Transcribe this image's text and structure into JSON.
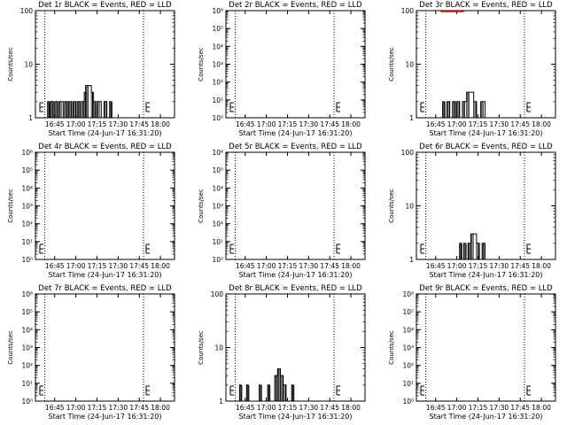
{
  "x_ticks": [
    "16:45",
    "17:00",
    "17:15",
    "17:30",
    "17:45",
    "18:00"
  ],
  "xlabel": "Start Time (24-Jun-17 16:31:20)",
  "ylabel": "Counts/sec",
  "colors": {
    "events": "#000000",
    "lld": "#ff0000",
    "axes": "#000000"
  },
  "chart_data": [
    {
      "type": "line",
      "title": "Det 1r BLACK = Events, RED = LLD",
      "x_range": [
        "16:31:20",
        "18:10"
      ],
      "y_scale": "log",
      "y_range": [
        1,
        100
      ],
      "y_ticks": [
        "1",
        "10",
        "100"
      ],
      "dotted_times": [
        "16:38",
        "17:48"
      ],
      "events": [
        [
          "16:40",
          2
        ],
        [
          "16:41",
          1
        ],
        [
          "16:42",
          2
        ],
        [
          "16:44",
          1
        ],
        [
          "16:45",
          2
        ],
        [
          "16:47",
          1
        ],
        [
          "16:48",
          2
        ],
        [
          "16:51",
          1
        ],
        [
          "16:52",
          2
        ],
        [
          "16:54",
          1
        ],
        [
          "16:55",
          2
        ],
        [
          "16:57",
          1
        ],
        [
          "16:58",
          2
        ],
        [
          "17:00",
          1
        ],
        [
          "17:01",
          2
        ],
        [
          "17:03",
          1
        ],
        [
          "17:04",
          2
        ],
        [
          "17:06",
          3
        ],
        [
          "17:07",
          4
        ],
        [
          "17:11",
          3
        ],
        [
          "17:12",
          2
        ],
        [
          "17:14",
          1
        ],
        [
          "17:15",
          2
        ],
        [
          "17:18",
          1
        ],
        [
          "17:20",
          2
        ],
        [
          "17:22",
          1
        ],
        [
          "17:24",
          2
        ],
        [
          "17:25",
          1
        ]
      ],
      "lld": []
    },
    {
      "type": "line",
      "title": "Det 2r BLACK = Events, RED = LLD",
      "x_range": [
        "16:31:20",
        "18:10"
      ],
      "y_scale": "log",
      "y_range": [
        1,
        1000000
      ],
      "y_ticks": [
        "10⁰",
        "10¹",
        "10²",
        "10³",
        "10⁴",
        "10⁵",
        "10⁶"
      ],
      "dotted_times": [
        "16:38",
        "17:48"
      ],
      "events": [],
      "lld": []
    },
    {
      "type": "line",
      "title": "Det 3r BLACK = Events, RED = LLD",
      "x_range": [
        "16:31:20",
        "18:10"
      ],
      "y_scale": "log",
      "y_range": [
        1,
        100
      ],
      "y_ticks": [
        "1",
        "10",
        "100"
      ],
      "dotted_times": [
        "16:38",
        "17:48"
      ],
      "events": [
        [
          "16:50",
          2
        ],
        [
          "16:51",
          1
        ],
        [
          "16:53",
          2
        ],
        [
          "16:55",
          1
        ],
        [
          "16:57",
          2
        ],
        [
          "16:59",
          1
        ],
        [
          "17:00",
          2
        ],
        [
          "17:02",
          1
        ],
        [
          "17:04",
          2
        ],
        [
          "17:07",
          3
        ],
        [
          "17:12",
          2
        ],
        [
          "17:14",
          1
        ],
        [
          "17:17",
          2
        ],
        [
          "17:20",
          1
        ]
      ],
      "lld": [
        [
          "16:51",
          100
        ],
        [
          "16:59",
          100
        ]
      ]
    },
    {
      "type": "line",
      "title": "Det 4r BLACK = Events, RED = LLD",
      "x_range": [
        "16:31:20",
        "18:10"
      ],
      "y_scale": "log",
      "y_range": [
        1,
        1000000
      ],
      "y_ticks": [
        "10⁰",
        "10¹",
        "10²",
        "10³",
        "10⁴",
        "10⁵",
        "10⁶"
      ],
      "dotted_times": [
        "16:38",
        "17:48"
      ],
      "events": [],
      "lld": []
    },
    {
      "type": "line",
      "title": "Det 5r BLACK = Events, RED = LLD",
      "x_range": [
        "16:31:20",
        "18:10"
      ],
      "y_scale": "log",
      "y_range": [
        1,
        1000000
      ],
      "y_ticks": [
        "10⁰",
        "10¹",
        "10²",
        "10³",
        "10⁴",
        "10⁵",
        "10⁶"
      ],
      "dotted_times": [
        "16:38",
        "17:48"
      ],
      "events": [],
      "lld": []
    },
    {
      "type": "line",
      "title": "Det 6r BLACK = Events, RED = LLD",
      "x_range": [
        "16:31:20",
        "18:10"
      ],
      "y_scale": "log",
      "y_range": [
        1,
        100
      ],
      "y_ticks": [
        "1",
        "10",
        "100"
      ],
      "dotted_times": [
        "16:38",
        "17:48"
      ],
      "events": [
        [
          "17:02",
          2
        ],
        [
          "17:03",
          1
        ],
        [
          "17:05",
          2
        ],
        [
          "17:06",
          1
        ],
        [
          "17:08",
          2
        ],
        [
          "17:10",
          3
        ],
        [
          "17:14",
          2
        ],
        [
          "17:16",
          1
        ],
        [
          "17:18",
          2
        ],
        [
          "17:20",
          1
        ]
      ],
      "lld": []
    },
    {
      "type": "line",
      "title": "Det 7r BLACK = Events, RED = LLD",
      "x_range": [
        "16:31:20",
        "18:10"
      ],
      "y_scale": "log",
      "y_range": [
        1,
        1000000
      ],
      "y_ticks": [
        "10⁰",
        "10¹",
        "10²",
        "10³",
        "10⁴",
        "10⁵",
        "10⁶"
      ],
      "dotted_times": [
        "16:38",
        "17:48"
      ],
      "events": [],
      "lld": []
    },
    {
      "type": "line",
      "title": "Det 8r BLACK = Events, RED = LLD",
      "x_range": [
        "16:31:20",
        "18:10"
      ],
      "y_scale": "log",
      "y_range": [
        1,
        100
      ],
      "y_ticks": [
        "1",
        "10",
        "100"
      ],
      "dotted_times": [
        "16:38",
        "17:48"
      ],
      "events": [
        [
          "16:41",
          2
        ],
        [
          "16:42",
          1
        ],
        [
          "16:46",
          2
        ],
        [
          "16:47",
          1
        ],
        [
          "16:55",
          2
        ],
        [
          "16:56",
          1
        ],
        [
          "17:01",
          2
        ],
        [
          "17:02",
          1
        ],
        [
          "17:06",
          3
        ],
        [
          "17:08",
          4
        ],
        [
          "17:10",
          3
        ],
        [
          "17:12",
          2
        ],
        [
          "17:14",
          1
        ],
        [
          "17:18",
          2
        ],
        [
          "17:19",
          1
        ]
      ],
      "lld": []
    },
    {
      "type": "line",
      "title": "Det 9r BLACK = Events, RED = LLD",
      "x_range": [
        "16:31:20",
        "18:10"
      ],
      "y_scale": "log",
      "y_range": [
        1,
        1000000
      ],
      "y_ticks": [
        "10⁰",
        "10¹",
        "10²",
        "10³",
        "10⁴",
        "10⁵",
        "10⁶"
      ],
      "dotted_times": [
        "16:38",
        "17:48"
      ],
      "events": [],
      "lld": []
    }
  ]
}
